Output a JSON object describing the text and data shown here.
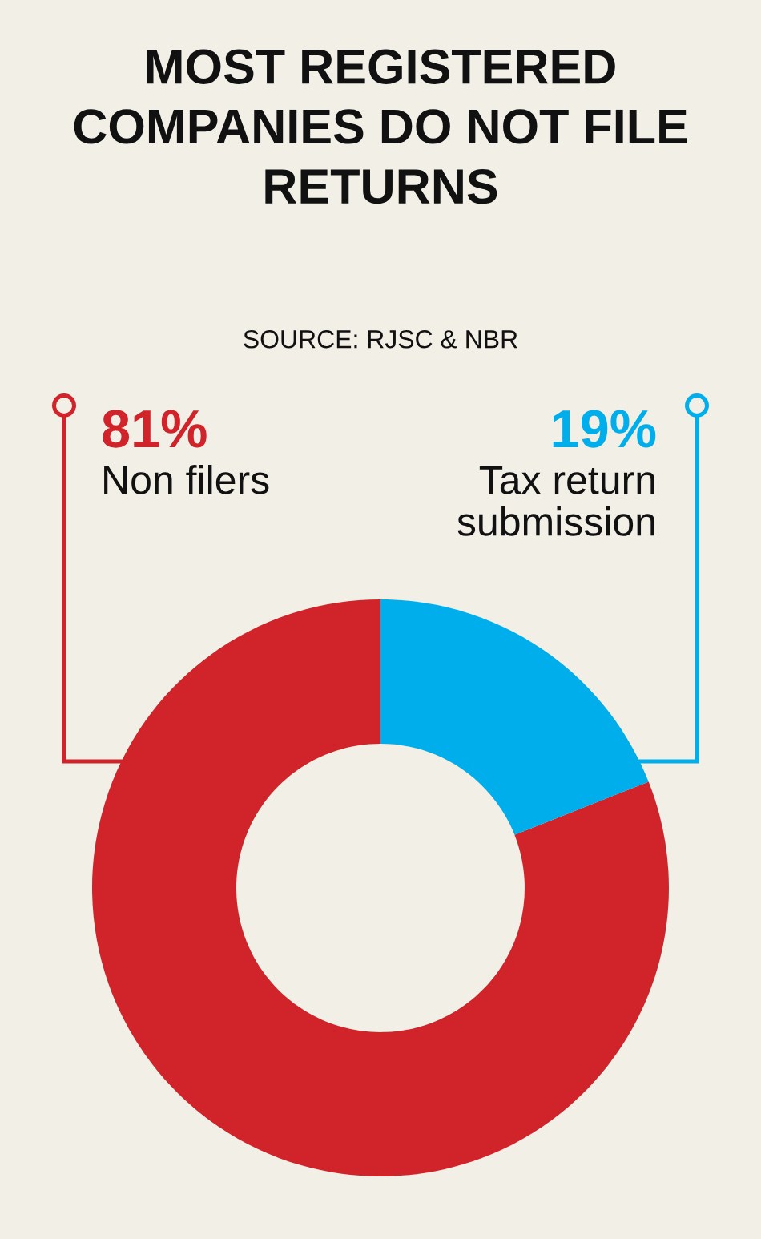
{
  "chart_data": {
    "type": "donut",
    "title": "MOST REGISTERED COMPANIES DO NOT FILE RETURNS",
    "annotations": [
      "SOURCE: RJSC & NBR"
    ],
    "categories": [
      "Non filers",
      "Tax return\nsubmission"
    ],
    "values": [
      81,
      19
    ],
    "colors": [
      "#d1232a",
      "#00aeec"
    ],
    "value_labels": [
      "81%",
      "19%"
    ]
  }
}
